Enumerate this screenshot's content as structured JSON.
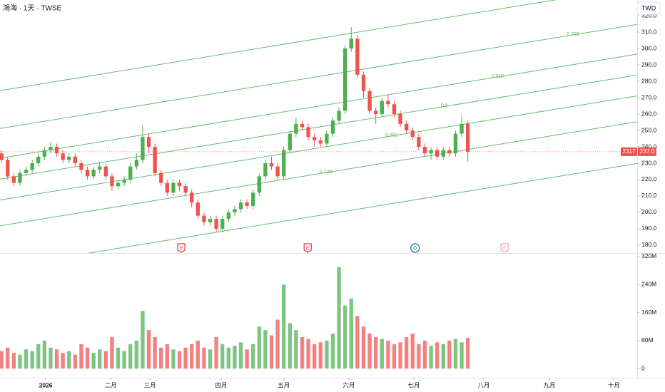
{
  "chart_data": {
    "type": "candlestick",
    "title": "鴻海 · 1天 · TWSE",
    "currency": "TWD",
    "symbol_code": "2317",
    "last_price_label": "237.0",
    "up_color": "#4caf50",
    "down_color": "#ef5350",
    "volume_up_color": "#66bb6a",
    "volume_down_color": "#f26b6b",
    "open": [
      236,
      232,
      222,
      218,
      224,
      226,
      230,
      234,
      238,
      240,
      236,
      232,
      234,
      230,
      226,
      222,
      226,
      228,
      222,
      216,
      218,
      220,
      228,
      232,
      246,
      240,
      224,
      218,
      212,
      218,
      216,
      212,
      206,
      198,
      194,
      196,
      190,
      196,
      200,
      202,
      206,
      204,
      212,
      222,
      230,
      228,
      222,
      238,
      248,
      254,
      252,
      246,
      244,
      242,
      248,
      256,
      262,
      300,
      306,
      284,
      274,
      262,
      260,
      268,
      266,
      260,
      254,
      250,
      246,
      240,
      236,
      238,
      234,
      238,
      236,
      248,
      254
    ],
    "high": [
      238,
      234,
      224,
      226,
      228,
      232,
      236,
      240,
      243,
      242,
      238,
      236,
      236,
      232,
      228,
      228,
      231,
      230,
      224,
      220,
      222,
      230,
      236,
      253,
      248,
      242,
      226,
      220,
      220,
      220,
      218,
      214,
      208,
      200,
      198,
      198,
      198,
      202,
      204,
      208,
      208,
      214,
      224,
      232,
      234,
      230,
      240,
      250,
      258,
      256,
      254,
      248,
      246,
      250,
      258,
      264,
      302,
      313,
      308,
      286,
      276,
      264,
      270,
      272,
      268,
      262,
      256,
      252,
      248,
      242,
      240,
      240,
      240,
      240,
      250,
      259,
      256
    ],
    "low": [
      230,
      220,
      216,
      216,
      222,
      224,
      228,
      232,
      236,
      234,
      230,
      230,
      228,
      224,
      220,
      220,
      224,
      220,
      213,
      214,
      216,
      218,
      226,
      230,
      236,
      222,
      216,
      210,
      210,
      213,
      210,
      203,
      196,
      192,
      192,
      188,
      188,
      194,
      198,
      200,
      202,
      202,
      210,
      220,
      226,
      220,
      220,
      236,
      246,
      250,
      244,
      240,
      240,
      240,
      246,
      254,
      260,
      298,
      282,
      270,
      260,
      254,
      258,
      264,
      258,
      252,
      248,
      244,
      238,
      234,
      232,
      232,
      232,
      234,
      234,
      246,
      231
    ],
    "close": [
      232,
      222,
      218,
      224,
      226,
      230,
      234,
      238,
      240,
      236,
      232,
      234,
      230,
      226,
      222,
      226,
      228,
      222,
      216,
      218,
      220,
      228,
      232,
      246,
      240,
      224,
      218,
      212,
      218,
      216,
      212,
      206,
      198,
      194,
      196,
      190,
      196,
      200,
      202,
      206,
      204,
      212,
      222,
      230,
      228,
      222,
      238,
      248,
      254,
      252,
      246,
      244,
      242,
      248,
      256,
      262,
      300,
      306,
      284,
      274,
      262,
      260,
      268,
      266,
      260,
      254,
      250,
      246,
      240,
      236,
      238,
      234,
      238,
      236,
      248,
      254,
      237
    ],
    "volume": [
      50,
      60,
      45,
      40,
      55,
      50,
      70,
      80,
      60,
      55,
      45,
      50,
      40,
      70,
      60,
      45,
      55,
      50,
      90,
      60,
      50,
      70,
      80,
      165,
      110,
      90,
      60,
      70,
      55,
      50,
      60,
      70,
      80,
      60,
      55,
      90,
      70,
      60,
      65,
      75,
      55,
      70,
      120,
      110,
      95,
      140,
      240,
      130,
      110,
      90,
      85,
      70,
      75,
      80,
      100,
      290,
      180,
      200,
      150,
      120,
      100,
      90,
      85,
      80,
      70,
      75,
      90,
      100,
      70,
      80,
      65,
      75,
      70,
      80,
      85,
      75,
      88
    ],
    "xlim": [
      -0.25,
      103.6
    ],
    "xticks": [
      {
        "value": 7.2,
        "label": "2026"
      },
      {
        "value": 17.8,
        "label": "二月"
      },
      {
        "value": 24.2,
        "label": "三月"
      },
      {
        "value": 35.8,
        "label": "四月"
      },
      {
        "value": 46,
        "label": "五月"
      },
      {
        "value": 56.6,
        "label": "六月"
      },
      {
        "value": 67.2,
        "label": "七月"
      },
      {
        "value": 78.6,
        "label": "八月"
      },
      {
        "value": 89.3,
        "label": "九月"
      },
      {
        "value": 99.8,
        "label": "十月"
      }
    ],
    "ylim": [
      175.2,
      329.6
    ],
    "yticks": [
      {
        "value": 180,
        "label": "180.0"
      },
      {
        "value": 190,
        "label": "190.0"
      },
      {
        "value": 200,
        "label": "200.0"
      },
      {
        "value": 210,
        "label": "210.0"
      },
      {
        "value": 220,
        "label": "220.0"
      },
      {
        "value": 230,
        "label": "230.0"
      },
      {
        "value": 240,
        "label": "240.0"
      },
      {
        "value": 250,
        "label": "250.0"
      },
      {
        "value": 260,
        "label": "260.0"
      },
      {
        "value": 270,
        "label": "270.0"
      },
      {
        "value": 280,
        "label": "280.0"
      },
      {
        "value": 290,
        "label": "290.0"
      },
      {
        "value": 300,
        "label": "300.0"
      },
      {
        "value": 310,
        "label": "310.0"
      },
      {
        "value": 320,
        "label": "320.0"
      }
    ],
    "y2lim": [
      -26,
      330
    ],
    "y2ticks": [
      0,
      {
        "value": 80,
        "label": "80M"
      },
      {
        "value": 160,
        "label": "160M"
      },
      {
        "value": 240,
        "label": "240M"
      },
      {
        "value": 320,
        "label": "320M"
      }
    ],
    "fib_channel": {
      "color": "#66bb6a",
      "start": {
        "x": 14.28,
        "price": 175.2
      },
      "end": {
        "x": 103.24,
        "price": 229.6
      },
      "width": 108,
      "levels": [
        0,
        0.236,
        0.382,
        0.5,
        0.618,
        0.786,
        1
      ]
    },
    "events": [
      {
        "label": "E",
        "x": 29.3,
        "color": "#f23645"
      },
      {
        "label": "E",
        "x": 49.9,
        "color": "#f23645"
      },
      {
        "label": "D",
        "x": 67.4,
        "color": "#00897b"
      },
      {
        "label": "E",
        "x": 82,
        "color": "#f5a3a9"
      }
    ]
  }
}
